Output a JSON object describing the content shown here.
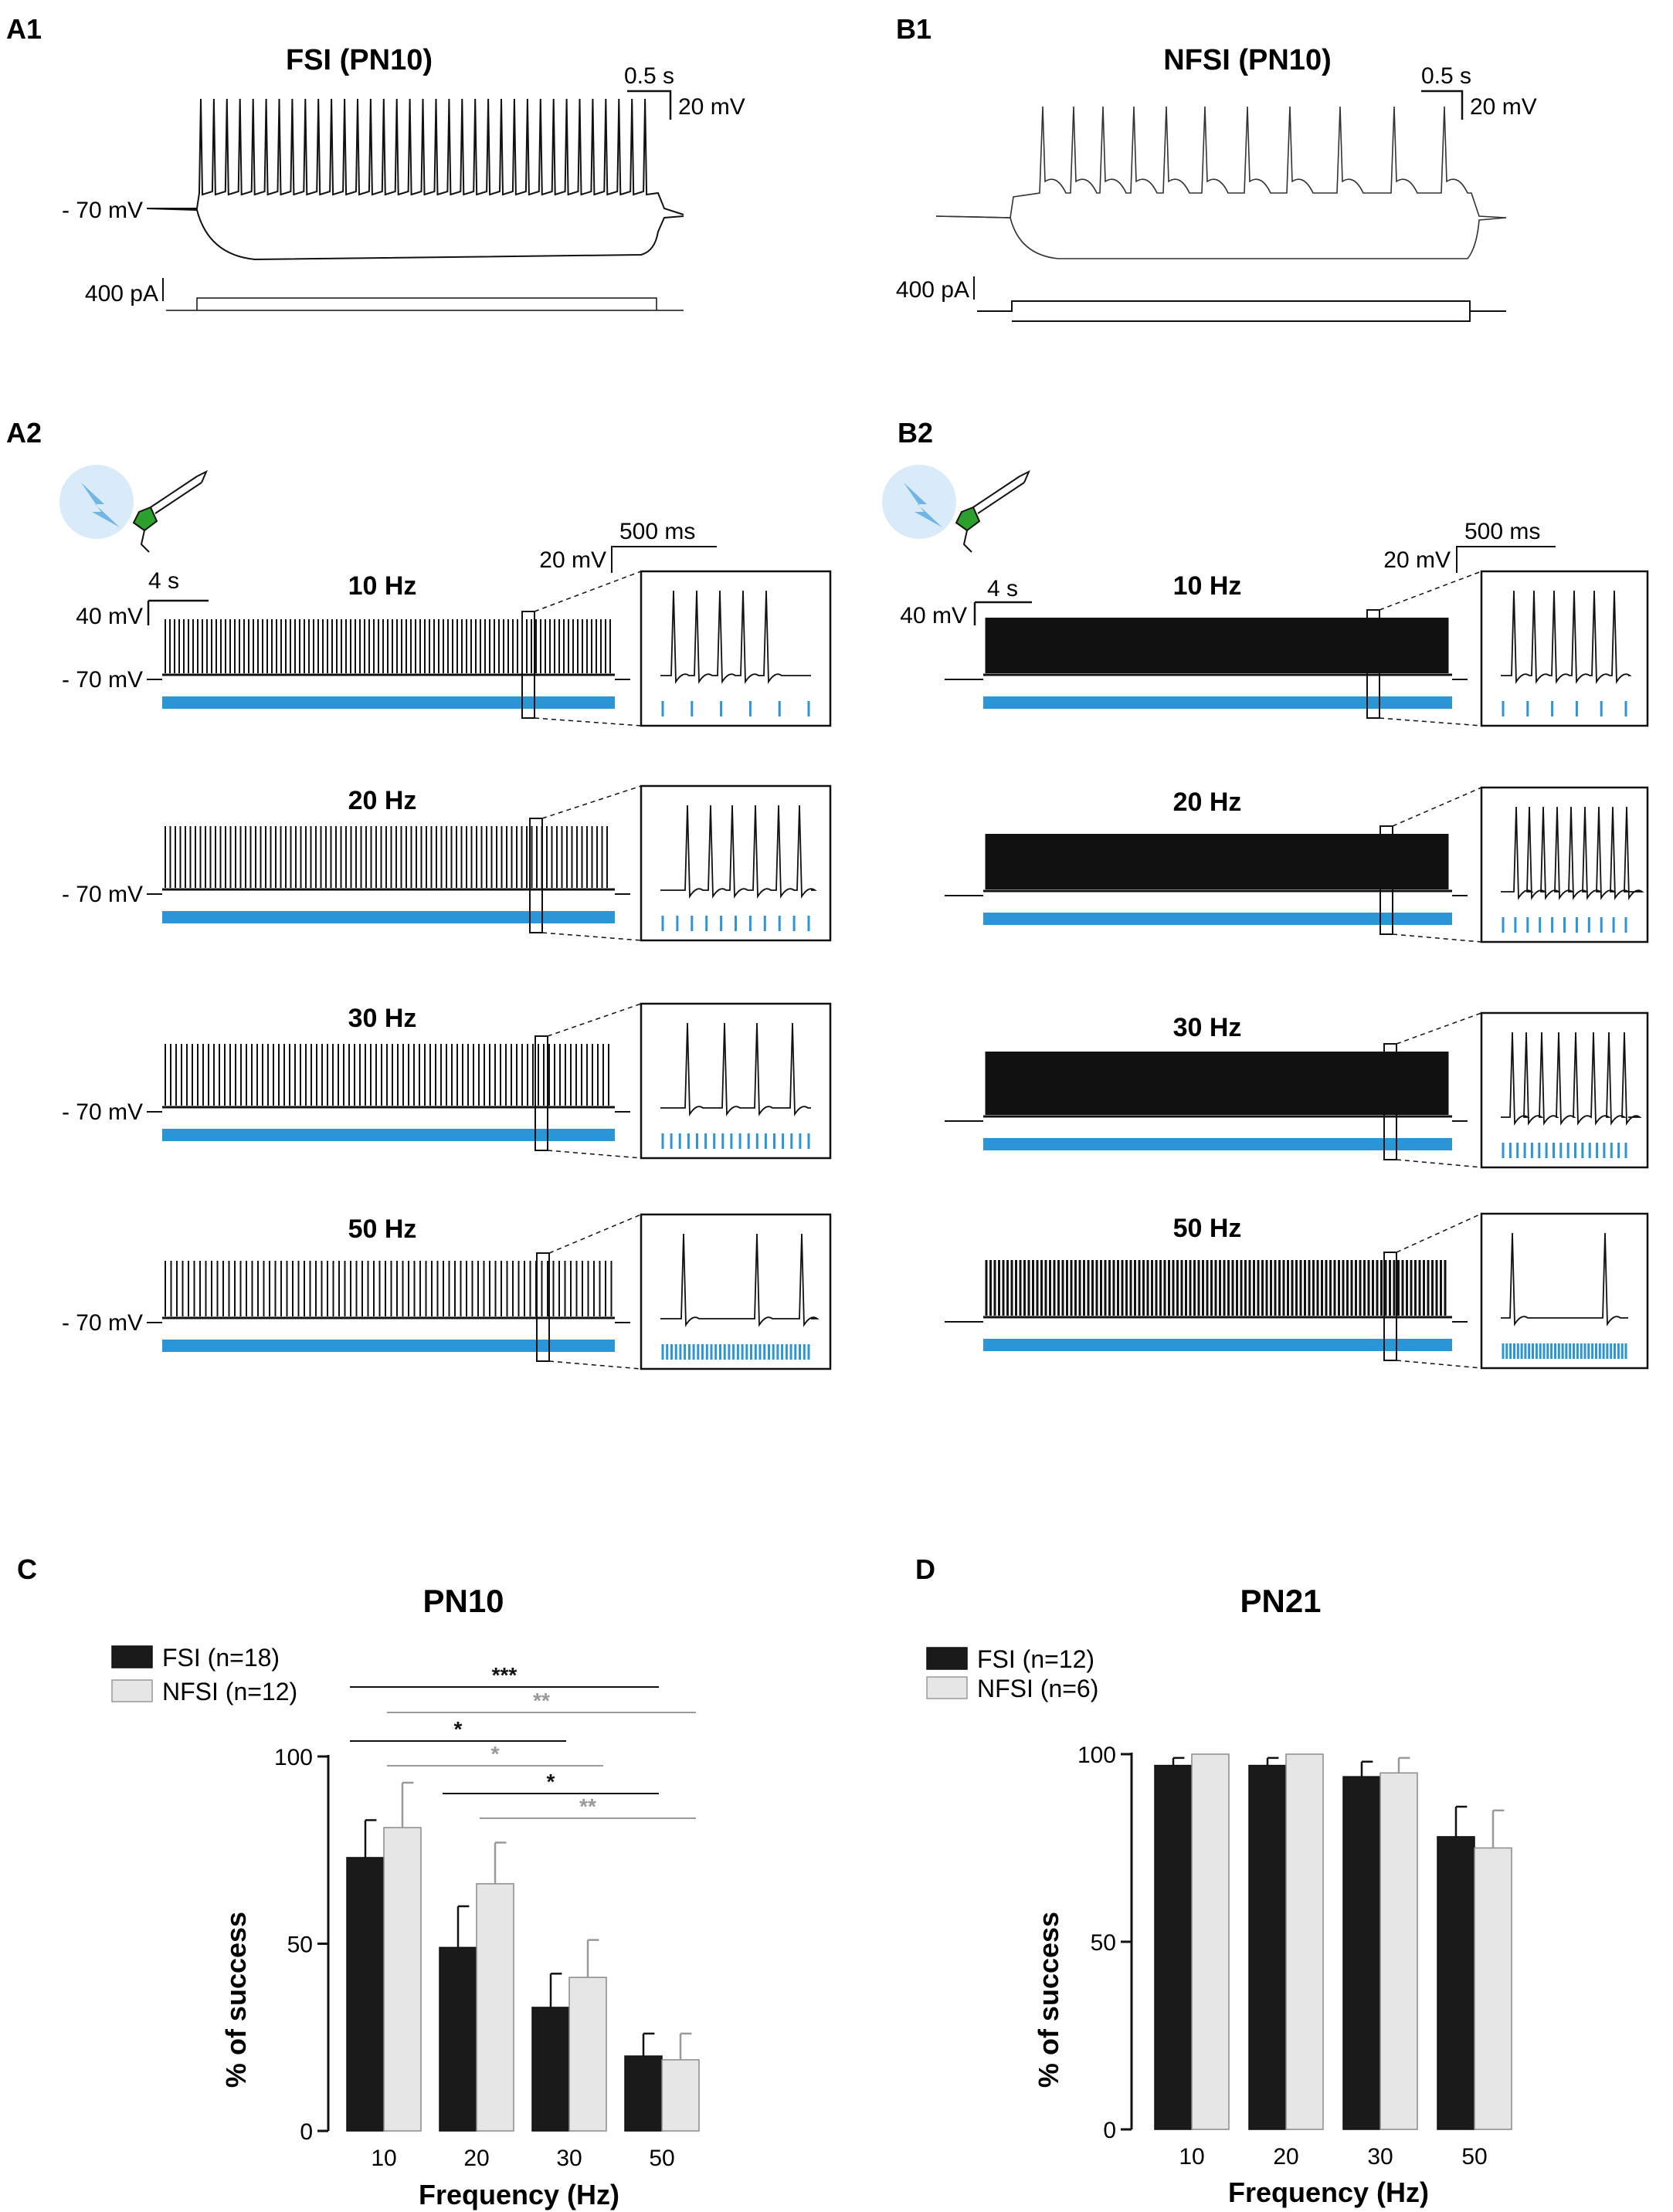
{
  "panels": {
    "A1": {
      "label": "A1",
      "title": "FSI (PN10)",
      "scale_time": "0.5 s",
      "scale_voltage": "20 mV",
      "resting": "- 70 mV",
      "current": "400 pA"
    },
    "B1": {
      "label": "B1",
      "title": "NFSI (PN10)",
      "scale_time": "0.5 s",
      "scale_voltage": "20 mV",
      "current": "400 pA"
    },
    "A2": {
      "label": "A2",
      "scale_time": "4 s",
      "scale_voltage": "40 mV",
      "inset_time": "500 ms",
      "inset_voltage": "20 mV",
      "resting": "- 70 mV",
      "freqs": [
        "10 Hz",
        "20 Hz",
        "30 Hz",
        "50 Hz"
      ]
    },
    "B2": {
      "label": "B2",
      "scale_time": "4 s",
      "scale_voltage": "40 mV",
      "inset_time": "500 ms",
      "inset_voltage": "20 mV",
      "freqs": [
        "10 Hz",
        "20 Hz",
        "30 Hz",
        "50 Hz"
      ]
    }
  },
  "colors": {
    "fsi": "#1a1a1a",
    "nfsi": "#e6e6e6",
    "light": "#2b95d6",
    "sig_nfsi": "#9a9a9a"
  },
  "chart_data": [
    {
      "panel": "C",
      "type": "bar",
      "title": "PN10",
      "categories": [
        "10",
        "20",
        "30",
        "50"
      ],
      "series": [
        {
          "name": "FSI (n=18)",
          "values": [
            73,
            49,
            33,
            20
          ],
          "sem": [
            10,
            11,
            9,
            6
          ]
        },
        {
          "name": "NFSI (n=12)",
          "values": [
            81,
            66,
            41,
            19
          ],
          "sem": [
            12,
            11,
            10,
            7
          ]
        }
      ],
      "xlabel": "Frequency (Hz)",
      "ylabel": "% of success",
      "ylim": [
        0,
        100
      ],
      "yticks": [
        "0",
        "50",
        "100"
      ],
      "legend": "top-left",
      "significance": [
        {
          "series": "FSI",
          "from": "10",
          "to": "50",
          "label": "***"
        },
        {
          "series": "NFSI",
          "from": "10",
          "to": "50",
          "label": "**"
        },
        {
          "series": "FSI",
          "from": "10",
          "to": "30",
          "label": "*"
        },
        {
          "series": "NFSI",
          "from": "10",
          "to": "30",
          "label": "*"
        },
        {
          "series": "FSI",
          "from": "20",
          "to": "50",
          "label": "*"
        },
        {
          "series": "NFSI",
          "from": "20",
          "to": "50",
          "label": "**"
        }
      ]
    },
    {
      "panel": "D",
      "type": "bar",
      "title": "PN21",
      "categories": [
        "10",
        "20",
        "30",
        "50"
      ],
      "series": [
        {
          "name": "FSI (n=12)",
          "values": [
            97,
            97,
            94,
            78
          ],
          "sem": [
            2,
            2,
            4,
            8
          ]
        },
        {
          "name": "NFSI (n=6)",
          "values": [
            100,
            100,
            95,
            75
          ],
          "sem": [
            0,
            0,
            4,
            10
          ]
        }
      ],
      "xlabel": "Frequency (Hz)",
      "ylabel": "% of success",
      "ylim": [
        0,
        100
      ],
      "yticks": [
        "0",
        "50",
        "100"
      ],
      "legend": "top-left"
    }
  ],
  "panel_labels": {
    "C": "C",
    "D": "D"
  }
}
